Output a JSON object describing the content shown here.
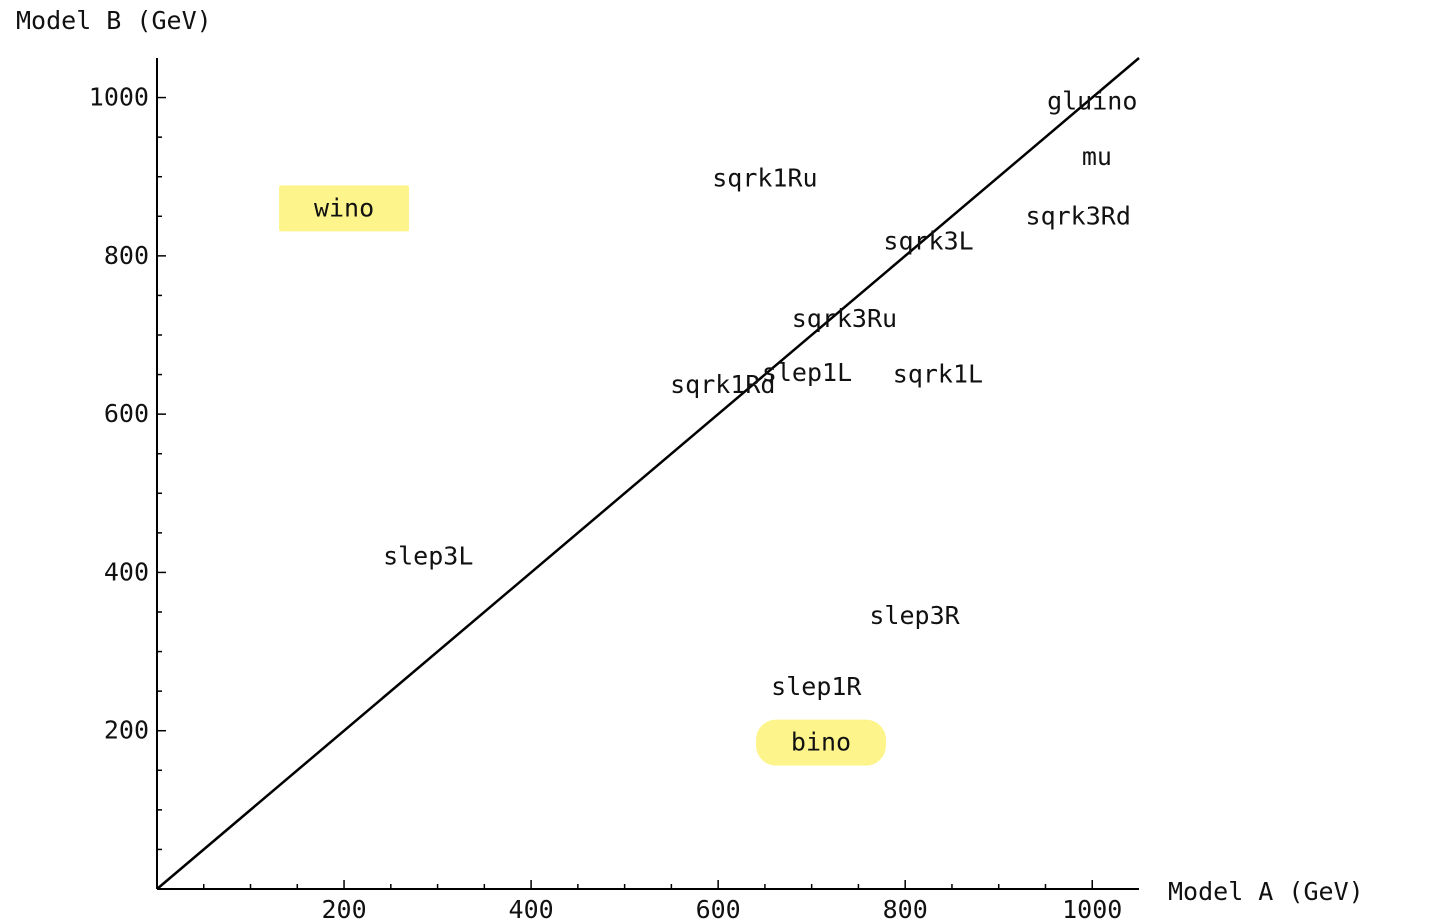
{
  "chart_data": {
    "type": "scatter",
    "title": "",
    "xlabel": "Model A (GeV)",
    "ylabel": "Model B (GeV)",
    "xlim": [
      0,
      1050
    ],
    "ylim": [
      0,
      1050
    ],
    "x_ticks": [
      200,
      400,
      600,
      800,
      1000
    ],
    "y_ticks": [
      200,
      400,
      600,
      800,
      1000
    ],
    "diagonal": "y = x",
    "highlight_color": "#fdf58c",
    "points": [
      {
        "label": "gluino",
        "x": 1000,
        "y": 995
      },
      {
        "label": "mu",
        "x": 1005,
        "y": 925
      },
      {
        "label": "sqrk1Ru",
        "x": 650,
        "y": 898
      },
      {
        "label": "wino",
        "x": 200,
        "y": 860,
        "highlight": true
      },
      {
        "label": "sqrk3Rd",
        "x": 985,
        "y": 850
      },
      {
        "label": "sqrk3L",
        "x": 825,
        "y": 818
      },
      {
        "label": "sqrk3Ru",
        "x": 735,
        "y": 720
      },
      {
        "label": "slep1L",
        "x": 695,
        "y": 652
      },
      {
        "label": "sqrk1L",
        "x": 835,
        "y": 650
      },
      {
        "label": "sqrk1Rd",
        "x": 605,
        "y": 637
      },
      {
        "label": "slep3L",
        "x": 290,
        "y": 420
      },
      {
        "label": "slep3R",
        "x": 810,
        "y": 345
      },
      {
        "label": "slep1R",
        "x": 705,
        "y": 255
      },
      {
        "label": "bino",
        "x": 710,
        "y": 185,
        "highlight": true
      }
    ]
  }
}
